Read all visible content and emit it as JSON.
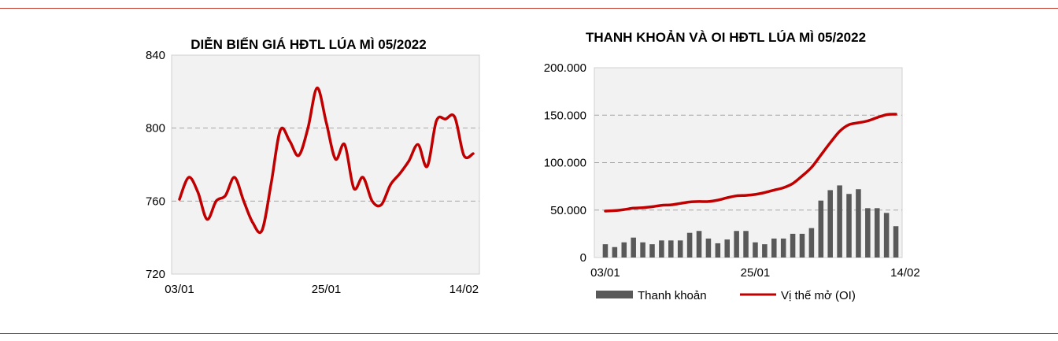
{
  "charts": [
    {
      "chart_data": {
        "type": "line",
        "title": "DIỄN BIẾN GIÁ HĐTL LÚA MÌ 05/2022",
        "xlabel": "",
        "ylabel": "",
        "ylim": [
          720,
          840
        ],
        "yticks": [
          "720",
          "760",
          "800",
          "840"
        ],
        "xticks": [
          {
            "label": "03/01",
            "index": 0
          },
          {
            "label": "25/01",
            "index": 16
          },
          {
            "label": "14/02",
            "index": 31
          }
        ],
        "grid": "horizontal-dashed",
        "background": "#f2f2f2",
        "series": [
          {
            "color": "#c00000",
            "values": [
              761,
              773,
              765,
              750,
              760,
              763,
              773,
              760,
              748,
              744,
              770,
              799,
              793,
              785,
              800,
              822,
              803,
              783,
              791,
              767,
              773,
              760,
              758,
              769,
              775,
              782,
              791,
              779,
              804,
              805,
              806,
              785,
              786
            ]
          }
        ]
      }
    },
    {
      "chart_data": {
        "type": "bar+line",
        "title": "THANH KHOẢN VÀ OI HĐTL LÚA MÌ  05/2022",
        "xlabel": "",
        "ylabel": "",
        "ylim": [
          0,
          200000
        ],
        "yticks": [
          "0",
          "50.000",
          "100.000",
          "150.000",
          "200.000"
        ],
        "xticks": [
          {
            "label": "03/01",
            "index": 0
          },
          {
            "label": "25/01",
            "index": 16
          },
          {
            "label": "14/02",
            "index": 32
          }
        ],
        "grid": "horizontal-dashed",
        "background": "#f2f2f2",
        "legend": "bottom",
        "series": [
          {
            "name": "Thanh khoản",
            "kind": "bar",
            "color": "#595959",
            "values": [
              14000,
              11000,
              16000,
              21000,
              16000,
              14000,
              18000,
              18000,
              18000,
              26000,
              28000,
              20000,
              15000,
              19000,
              28000,
              28000,
              16000,
              14000,
              20000,
              20000,
              25000,
              25000,
              31000,
              60000,
              71000,
              76000,
              67000,
              72000,
              52000,
              52000,
              47000,
              33000
            ]
          },
          {
            "name": "Vị thế mở (OI)",
            "kind": "line",
            "color": "#c00000",
            "values": [
              49000,
              49500,
              50500,
              52000,
              52500,
              53500,
              55000,
              55500,
              57000,
              58500,
              59000,
              59000,
              60500,
              63000,
              65000,
              65500,
              66500,
              68500,
              71000,
              73500,
              78000,
              86000,
              95000,
              108000,
              121000,
              133000,
              140000,
              142000,
              144000,
              147500,
              150500,
              151000
            ]
          }
        ]
      }
    }
  ]
}
